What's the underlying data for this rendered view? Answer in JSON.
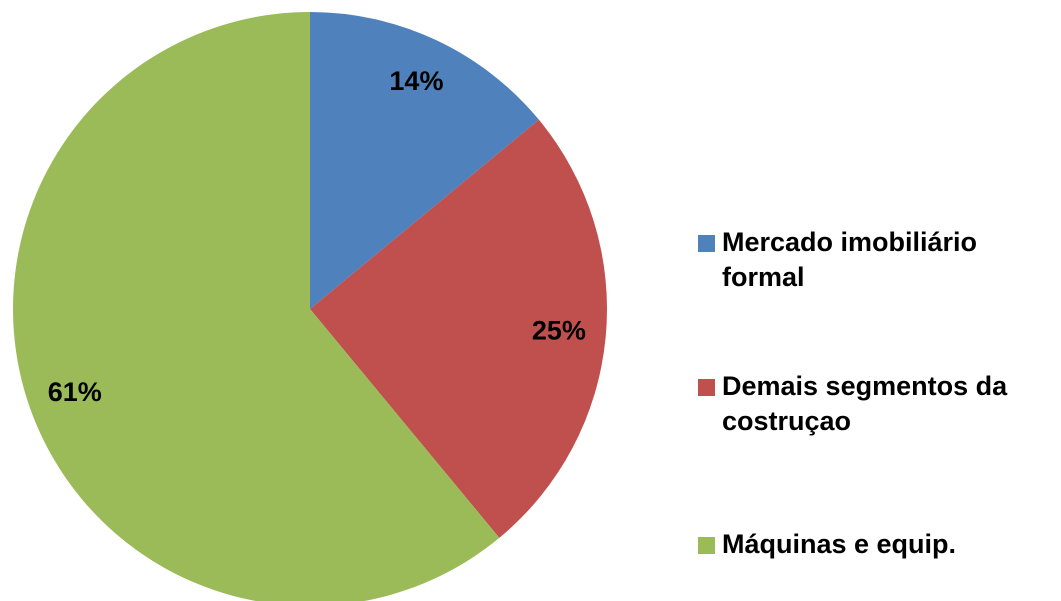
{
  "chart_data": {
    "type": "pie",
    "categories": [
      "Mercado imobiliário formal",
      "Demais segmentos da costruçao",
      "Máquinas e equip."
    ],
    "values": [
      14,
      25,
      61
    ],
    "value_labels": [
      "14%",
      "25%",
      "61%"
    ],
    "colors": [
      "#4f81bd",
      "#c0504d",
      "#9bbb59"
    ],
    "legend": "right"
  }
}
